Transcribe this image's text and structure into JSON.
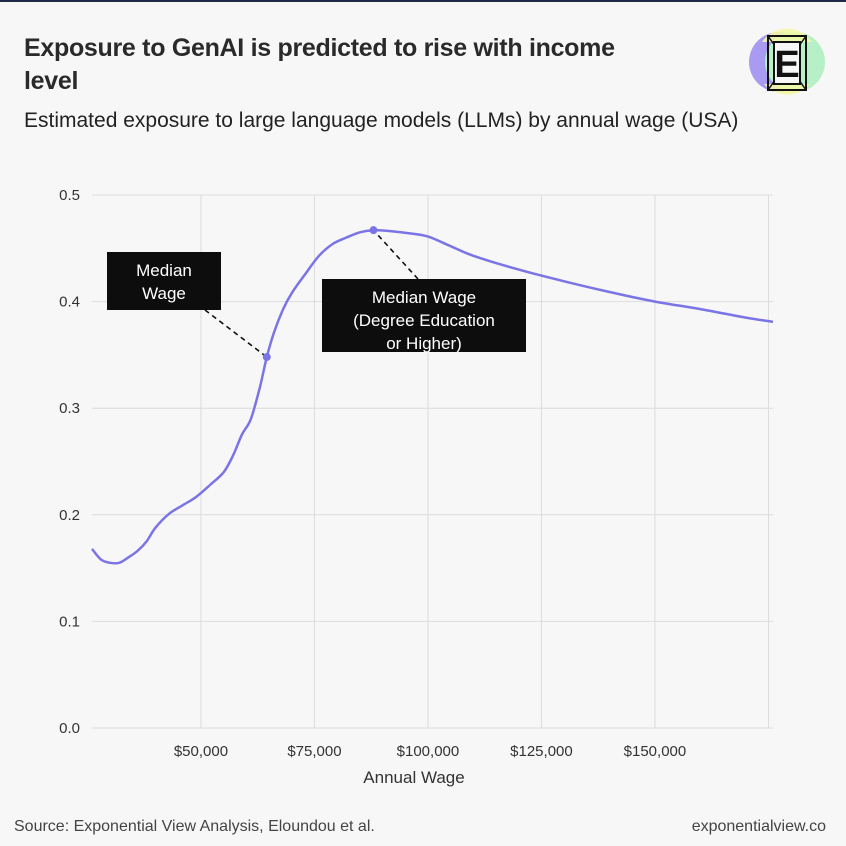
{
  "title": "Exposure to GenAI is predicted to rise with income level",
  "subtitle": "Estimated exposure to large language models (LLMs) by annual wage (USA)",
  "footer": {
    "source": "Source: Exponential View Analysis, Eloundou et al.",
    "site": "exponentialview.co"
  },
  "logo": {
    "letter": "E",
    "colors": [
      "#a99bf2",
      "#b6f0c6",
      "#f3f7a6"
    ]
  },
  "chart_data": {
    "type": "line",
    "xlabel": "Annual Wage",
    "ylabel": "",
    "xlim": [
      26000,
      176000
    ],
    "ylim": [
      0,
      0.5
    ],
    "y_ticks": [
      0.0,
      0.1,
      0.2,
      0.3,
      0.4,
      0.5
    ],
    "y_tick_labels": [
      "0.0",
      "0.1",
      "0.2",
      "0.3",
      "0.4",
      "0.5"
    ],
    "x_ticks": [
      50000,
      75000,
      100000,
      125000,
      150000
    ],
    "x_tick_labels": [
      "$50,000",
      "$75,000",
      "$100,000",
      "$125,000",
      "$150,000"
    ],
    "x_grid": [
      25000,
      50000,
      75000,
      100000,
      125000,
      150000,
      175000
    ],
    "grid": true,
    "line_color": "#7b74e6",
    "series": [
      {
        "x": [
          26000,
          28000,
          30000,
          32000,
          34000,
          36000,
          38000,
          40000,
          43000,
          46000,
          49000,
          52000,
          55000,
          57000,
          59000,
          61000,
          63000,
          64500,
          66000,
          68000,
          70000,
          73000,
          76000,
          79000,
          82000,
          85000,
          88000,
          92000,
          96000,
          100000,
          105000,
          110000,
          120000,
          130000,
          140000,
          150000,
          160000,
          170000,
          176000
        ],
        "y": [
          0.168,
          0.158,
          0.155,
          0.155,
          0.16,
          0.166,
          0.175,
          0.188,
          0.201,
          0.209,
          0.217,
          0.228,
          0.24,
          0.255,
          0.275,
          0.29,
          0.32,
          0.348,
          0.37,
          0.392,
          0.408,
          0.426,
          0.443,
          0.454,
          0.46,
          0.465,
          0.467,
          0.466,
          0.464,
          0.461,
          0.452,
          0.443,
          0.43,
          0.419,
          0.409,
          0.4,
          0.393,
          0.385,
          0.381
        ]
      }
    ],
    "annotations": [
      {
        "label": "Median Wage",
        "x": 64500,
        "y": 0.348
      },
      {
        "label": "Median Wage (Degree Education or Higher)",
        "x": 88000,
        "y": 0.467
      }
    ]
  }
}
